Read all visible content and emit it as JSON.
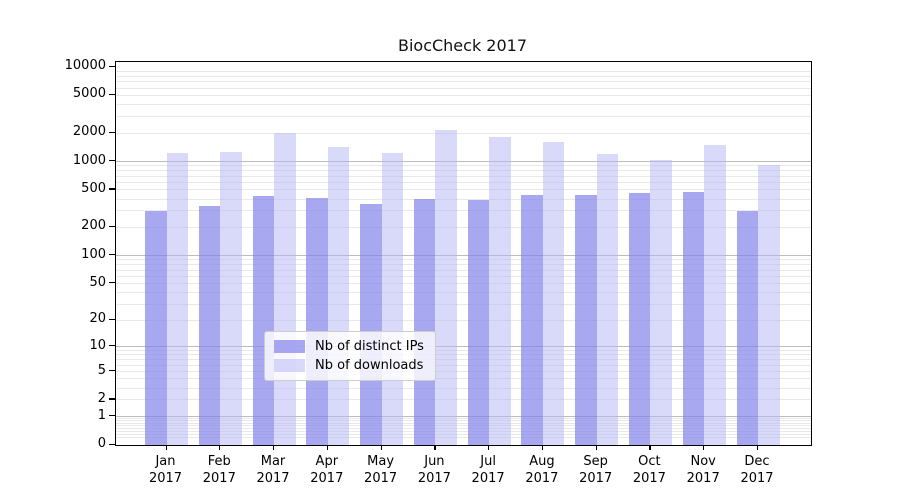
{
  "chart_data": {
    "type": "bar",
    "title": "BiocCheck 2017",
    "categories": [
      "Jan",
      "Feb",
      "Mar",
      "Apr",
      "May",
      "Jun",
      "Jul",
      "Aug",
      "Sep",
      "Oct",
      "Nov",
      "Dec"
    ],
    "x_sublabel_year": "2017",
    "series": [
      {
        "name": "Nb of distinct IPs",
        "color": "#8383ea",
        "alpha": 0.7,
        "values": [
          298,
          333,
          425,
          410,
          352,
          394,
          388,
          433,
          437,
          455,
          468,
          297
        ]
      },
      {
        "name": "Nb of downloads",
        "color": "#b3b3f3",
        "alpha": 0.5,
        "values": [
          1210,
          1260,
          1965,
          1400,
          1210,
          2135,
          1815,
          1605,
          1180,
          1030,
          1470,
          910
        ]
      }
    ],
    "xlabel": "",
    "ylabel": "",
    "y_scale": "log1p",
    "ylim": [
      0,
      10000
    ],
    "yticks": [
      10000,
      5000,
      2000,
      1000,
      500,
      200,
      100,
      50,
      20,
      10,
      5,
      2,
      1,
      0
    ],
    "grid": "horizontal",
    "grid_major_values": [
      1,
      10,
      100,
      1000
    ],
    "legend_position": "lower center"
  },
  "colors": {
    "grid_minor": "#e9e9e9",
    "grid_major": "#bcbcbc",
    "axis": "#000000",
    "legend_border": "#cccccc"
  }
}
